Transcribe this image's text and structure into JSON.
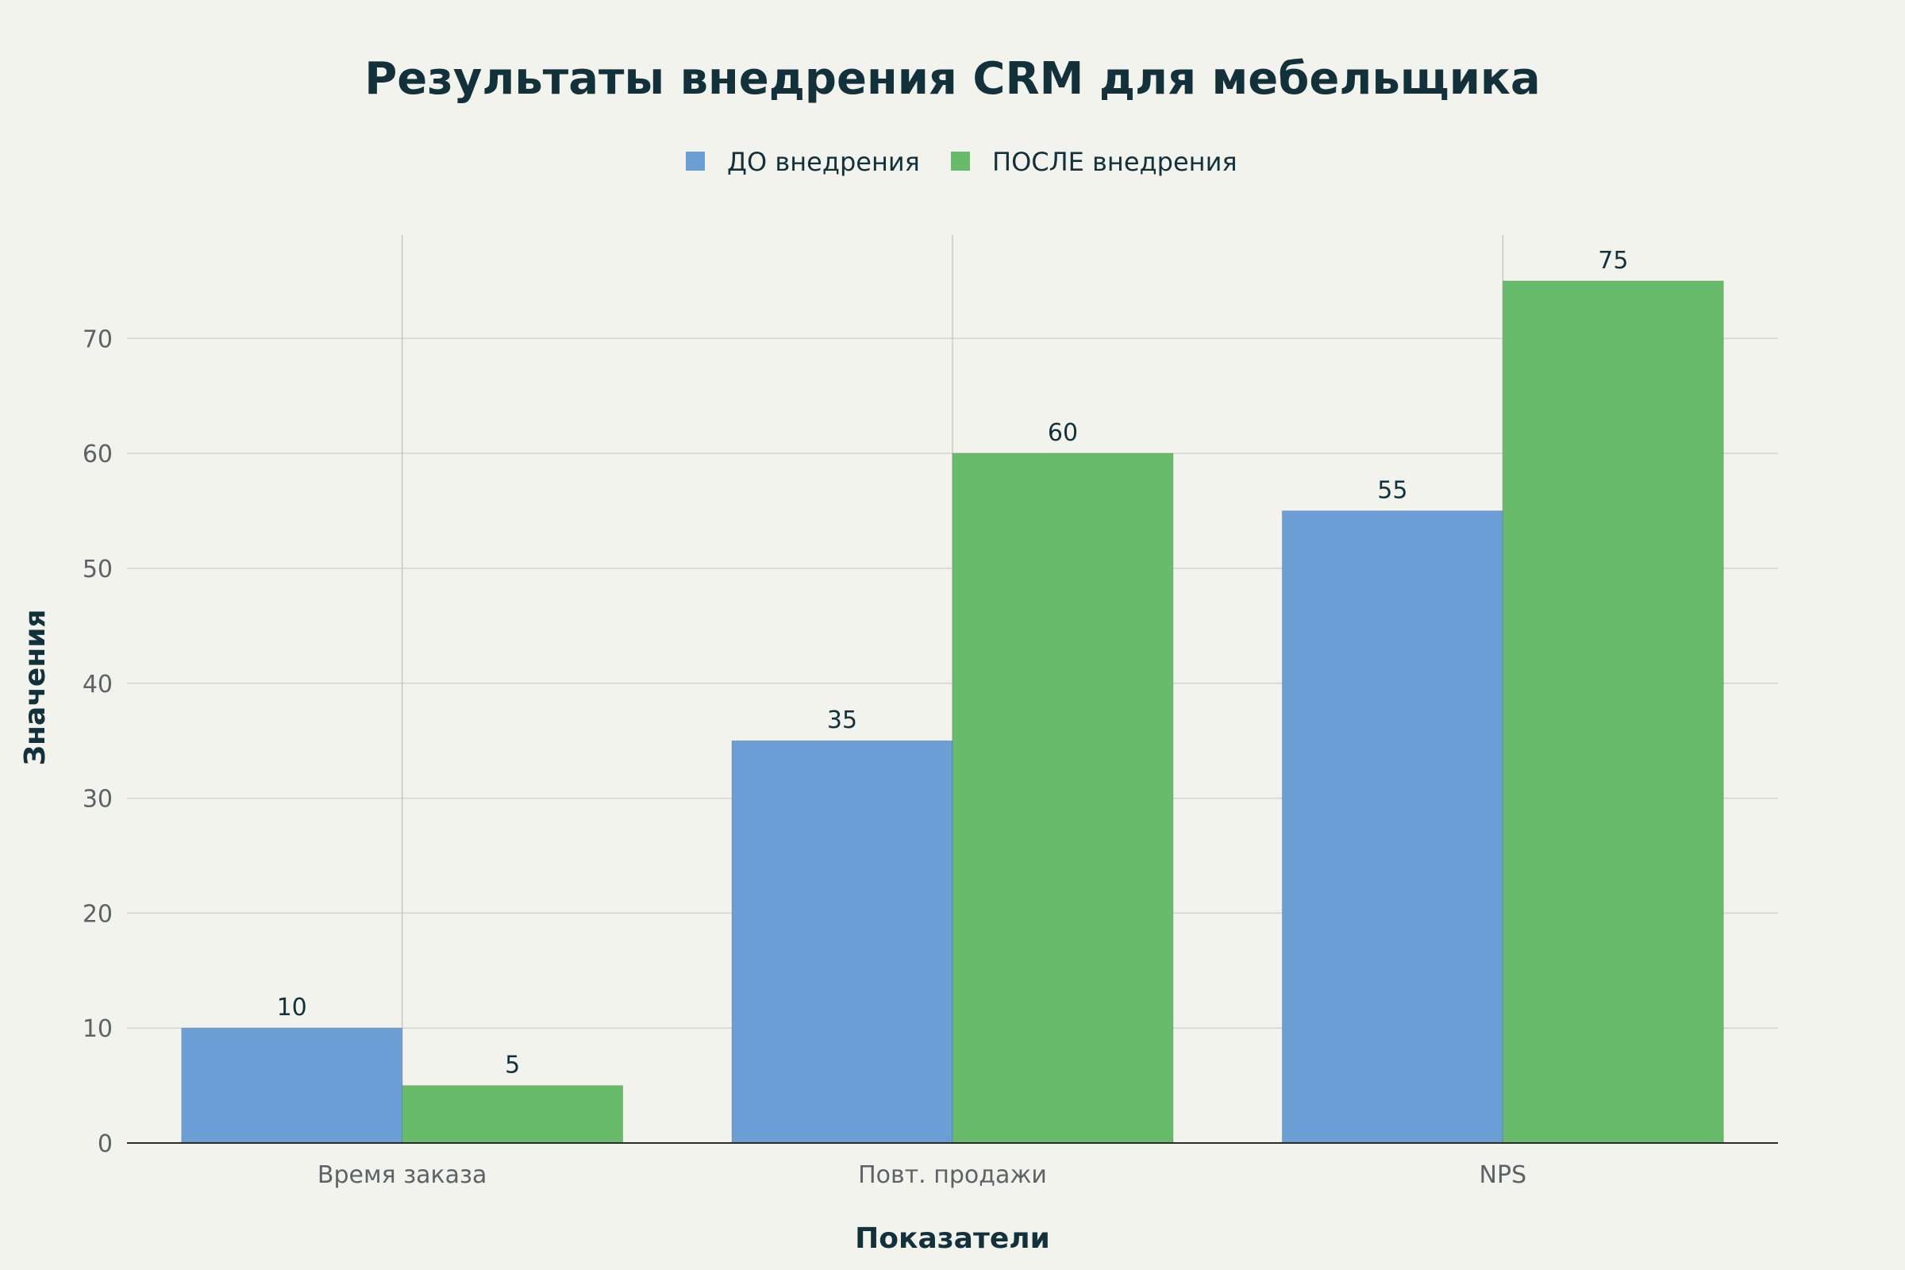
{
  "chart_data": {
    "type": "bar",
    "title": "Результаты внедрения CRM для мебельщика",
    "xlabel": "Показатели",
    "ylabel": "Значения",
    "categories": [
      "Время заказа",
      "Повт. продажи",
      "NPS"
    ],
    "series": [
      {
        "name": "ДО внедрения",
        "color": "#6c9ed6",
        "values": [
          10,
          35,
          55
        ]
      },
      {
        "name": "ПОСЛЕ внедрения",
        "color": "#68bb6a",
        "values": [
          5,
          60,
          75
        ]
      }
    ],
    "ylim": [
      0,
      79
    ],
    "yticks": [
      0,
      10,
      20,
      30,
      40,
      50,
      60,
      70
    ],
    "grid": true,
    "legend": "top-center"
  }
}
